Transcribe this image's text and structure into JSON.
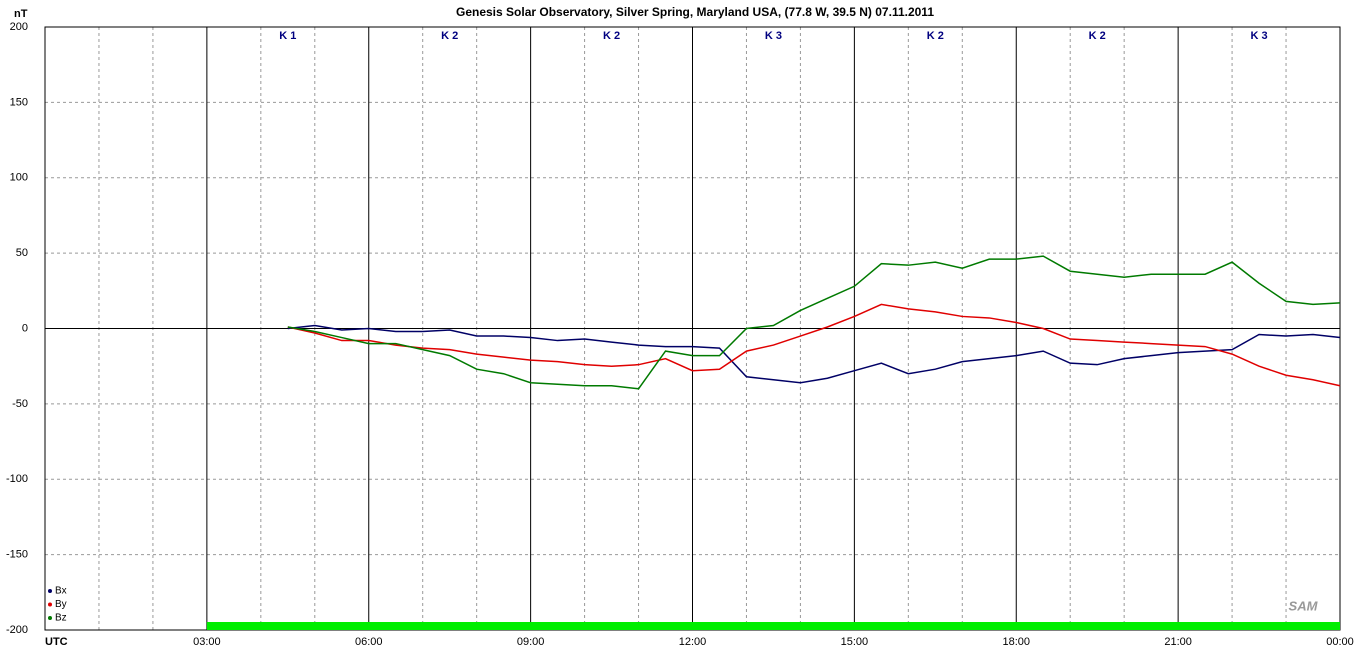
{
  "chart_data": {
    "type": "line",
    "title": "Genesis Solar Observatory, Silver Spring, Maryland USA, (77.8 W, 39.5 N)  07.11.2011",
    "y_unit": "nT",
    "x_label": "UTC",
    "logo": "SAM",
    "x": [
      4.5,
      5,
      5.5,
      6,
      6.5,
      7,
      7.5,
      8,
      8.5,
      9,
      9.5,
      10,
      10.5,
      11,
      11.5,
      12,
      12.5,
      13,
      13.5,
      14,
      14.5,
      15,
      15.5,
      16,
      16.5,
      17,
      17.5,
      18,
      18.5,
      19,
      19.5,
      20,
      20.5,
      21,
      21.5,
      22,
      22.5,
      23,
      23.5,
      24
    ],
    "series": [
      {
        "name": "Bx",
        "color": "#000066",
        "values": [
          0,
          2,
          -1,
          0,
          -2,
          -2,
          -1,
          -5,
          -5,
          -6,
          -8,
          -7,
          -9,
          -11,
          -12,
          -12,
          -13,
          -32,
          -34,
          -36,
          -33,
          -28,
          -23,
          -30,
          -27,
          -22,
          -20,
          -18,
          -15,
          -23,
          -24,
          -20,
          -18,
          -16,
          -15,
          -14,
          -4,
          -5,
          -4,
          -6
        ]
      },
      {
        "name": "By",
        "color": "#e00000",
        "values": [
          1,
          -3,
          -8,
          -8,
          -11,
          -13,
          -14,
          -17,
          -19,
          -21,
          -22,
          -24,
          -25,
          -24,
          -20,
          -28,
          -27,
          -15,
          -11,
          -5,
          1,
          8,
          16,
          13,
          11,
          8,
          7,
          4,
          0,
          -7,
          -8,
          -9,
          -10,
          -11,
          -12,
          -17,
          -25,
          -31,
          -34,
          -38
        ]
      },
      {
        "name": "Bz",
        "color": "#007a00",
        "values": [
          1,
          -2,
          -6,
          -10,
          -10,
          -14,
          -18,
          -27,
          -30,
          -36,
          -37,
          -38,
          -38,
          -40,
          -15,
          -18,
          -18,
          0,
          2,
          12,
          20,
          28,
          43,
          42,
          44,
          40,
          46,
          46,
          48,
          38,
          36,
          34,
          36,
          36,
          36,
          44,
          30,
          18,
          16,
          17
        ]
      }
    ],
    "xlim": [
      0,
      24
    ],
    "xticks": [
      {
        "value": 3,
        "label": "03:00"
      },
      {
        "value": 6,
        "label": "06:00"
      },
      {
        "value": 9,
        "label": "09:00"
      },
      {
        "value": 12,
        "label": "12:00"
      },
      {
        "value": 15,
        "label": "15:00"
      },
      {
        "value": 18,
        "label": "18:00"
      },
      {
        "value": 21,
        "label": "21:00"
      },
      {
        "value": 24,
        "label": "00:00"
      }
    ],
    "x_minor_grid": [
      1,
      2,
      4,
      5,
      7,
      8,
      10,
      11,
      13,
      14,
      16,
      17,
      19,
      20,
      22,
      23
    ],
    "ylim": [
      -200,
      200
    ],
    "yticks": [
      -200,
      -150,
      -100,
      -50,
      0,
      50,
      100,
      150,
      200
    ],
    "k_index": [
      {
        "start": 3,
        "end": 6,
        "label": "K 1"
      },
      {
        "start": 6,
        "end": 9,
        "label": "K 2"
      },
      {
        "start": 9,
        "end": 12,
        "label": "K 2"
      },
      {
        "start": 12,
        "end": 15,
        "label": "K 3"
      },
      {
        "start": 15,
        "end": 18,
        "label": "K 2"
      },
      {
        "start": 18,
        "end": 21,
        "label": "K 2"
      },
      {
        "start": 21,
        "end": 24,
        "label": "K 3"
      }
    ],
    "coverage": {
      "xlim": [
        3,
        24
      ],
      "color": "#00ee00"
    },
    "legend": "lower left"
  }
}
